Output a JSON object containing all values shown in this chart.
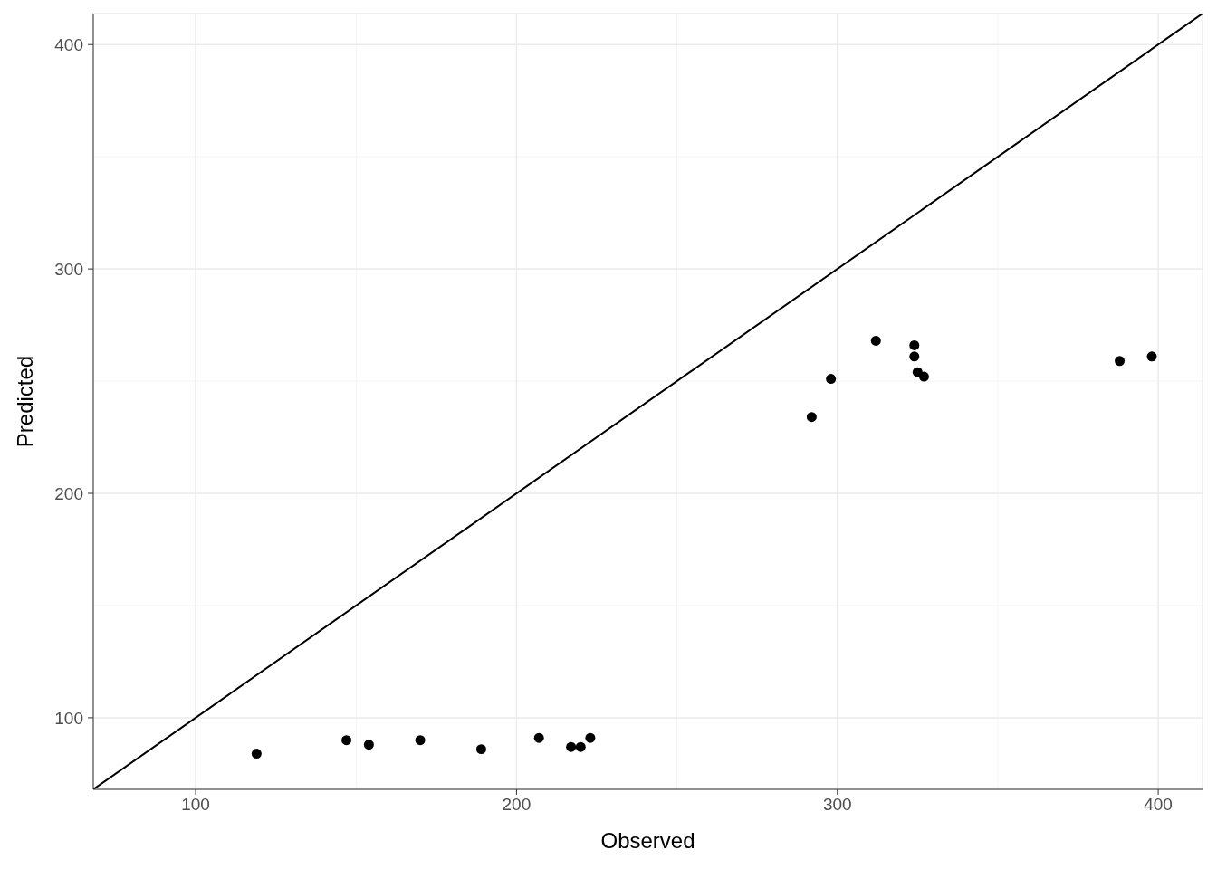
{
  "chart_data": {
    "type": "scatter",
    "xlabel": "Observed",
    "ylabel": "Predicted",
    "xlim": [
      68.1,
      413.8
    ],
    "ylim": [
      68.1,
      413.8
    ],
    "xticks": [
      100,
      200,
      300,
      400
    ],
    "yticks": [
      100,
      200,
      300,
      400
    ],
    "grid": true,
    "series": [
      {
        "color": "#000000",
        "marker": "circle",
        "x": [
          119,
          147,
          154,
          170,
          189,
          207,
          217,
          220,
          223,
          292,
          298,
          312,
          324,
          324,
          325,
          327,
          388,
          398
        ],
        "values": [
          84,
          90,
          88,
          90,
          86,
          91,
          87,
          87,
          91,
          234,
          251,
          268,
          266,
          261,
          254,
          252,
          259,
          261
        ]
      },
      {
        "type": "line",
        "color": "#000000",
        "line_style": "solid",
        "x": [
          68.1,
          413.8
        ],
        "values": [
          68.1,
          413.8
        ]
      }
    ]
  }
}
